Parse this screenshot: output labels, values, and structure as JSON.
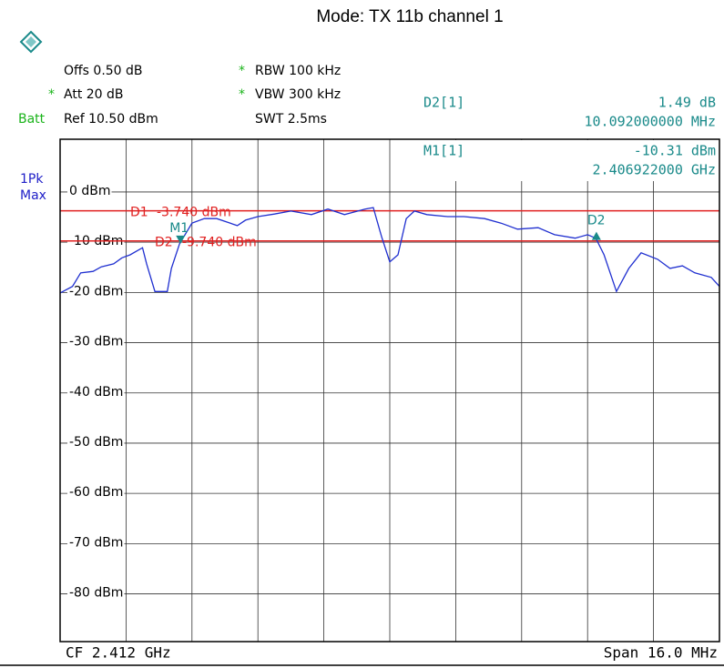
{
  "header": {
    "title": "Mode: TX 11b channel 1",
    "star": "*",
    "offs": "Offs 0.50 dB",
    "att": "Att 20 dB",
    "ref": "Ref 10.50 dBm",
    "batt": "Batt",
    "rbw": "RBW 100 kHz",
    "vbw": "VBW 300 kHz",
    "swt": "SWT 2.5ms",
    "detector": [
      "1Pk",
      "Max"
    ]
  },
  "readout": {
    "d2_name": "D2[1]",
    "d2_value": "1.49 dB",
    "d2_freq": "10.092000000 MHz",
    "m1_name": "M1[1]",
    "m1_value": "-10.31 dBm",
    "m1_freq": "2.406922000 GHz"
  },
  "footer": {
    "cf": "CF 2.412 GHz",
    "span": "Span 16.0 MHz"
  },
  "chart_data": {
    "type": "line",
    "color": "#1f2fd0",
    "grid": true,
    "xlim": [
      2.404,
      2.42
    ],
    "xticks": [
      2.404,
      2.4056,
      2.4072,
      2.4088,
      2.4104,
      2.412,
      2.4136,
      2.4152,
      2.4168,
      2.4184,
      2.42
    ],
    "ylim": [
      -89.5,
      10.5
    ],
    "yticks": [
      {
        "value": 0,
        "label": "0 dBm"
      },
      {
        "value": -10,
        "label": "-10 dBm"
      },
      {
        "value": -20,
        "label": "-20 dBm"
      },
      {
        "value": -30,
        "label": "-30 dBm"
      },
      {
        "value": -40,
        "label": "-40 dBm"
      },
      {
        "value": -50,
        "label": "-50 dBm"
      },
      {
        "value": -60,
        "label": "-60 dBm"
      },
      {
        "value": -70,
        "label": "-70 dBm"
      },
      {
        "value": -80,
        "label": "-80 dBm"
      }
    ],
    "reference_lines": [
      {
        "name": "D1",
        "value": -3.74,
        "label": "-3.740 dBm",
        "color": "#e02020"
      },
      {
        "name": "D2",
        "value": -9.74,
        "label": "-9.740 dBm",
        "color": "#e02020"
      }
    ],
    "markers": [
      {
        "name": "M1",
        "x": 2.406922,
        "y": -10.31,
        "color": "#1a8a8a"
      },
      {
        "name": "D2",
        "x": 2.417014,
        "y": -8.82,
        "color": "#1a8a8a"
      }
    ],
    "x": [
      2.404,
      2.4043,
      2.4045,
      2.4048,
      2.405,
      2.4053,
      2.4055,
      2.4057,
      2.406,
      2.4061,
      2.4063,
      2.4066,
      2.4067,
      2.4069,
      2.4072,
      2.4075,
      2.4078,
      2.4083,
      2.4085,
      2.4088,
      2.4092,
      2.4096,
      2.4101,
      2.4105,
      2.4109,
      2.4114,
      2.4116,
      2.4118,
      2.412,
      2.4122,
      2.4124,
      2.4126,
      2.4129,
      2.4134,
      2.4138,
      2.4143,
      2.4147,
      2.4151,
      2.4156,
      2.416,
      2.4165,
      2.4168,
      2.417,
      2.4172,
      2.4175,
      2.4178,
      2.4181,
      2.4185,
      2.4188,
      2.4191,
      2.4194,
      2.4198,
      2.42
    ],
    "values": [
      -20.1,
      -18.8,
      -16.1,
      -15.8,
      -14.9,
      -14.3,
      -13.1,
      -12.5,
      -11.1,
      -14.3,
      -19.8,
      -19.8,
      -15.2,
      -10.3,
      -6.2,
      -5.3,
      -5.3,
      -6.7,
      -5.6,
      -4.9,
      -4.4,
      -3.8,
      -4.5,
      -3.4,
      -4.5,
      -3.4,
      -3.1,
      -8.9,
      -13.9,
      -12.5,
      -5.3,
      -3.8,
      -4.5,
      -4.9,
      -4.9,
      -5.3,
      -6.2,
      -7.4,
      -7.1,
      -8.5,
      -9.2,
      -8.5,
      -9.2,
      -12.5,
      -19.8,
      -15.2,
      -12.1,
      -13.4,
      -15.2,
      -14.7,
      -16.1,
      -17.0,
      -18.8
    ]
  }
}
